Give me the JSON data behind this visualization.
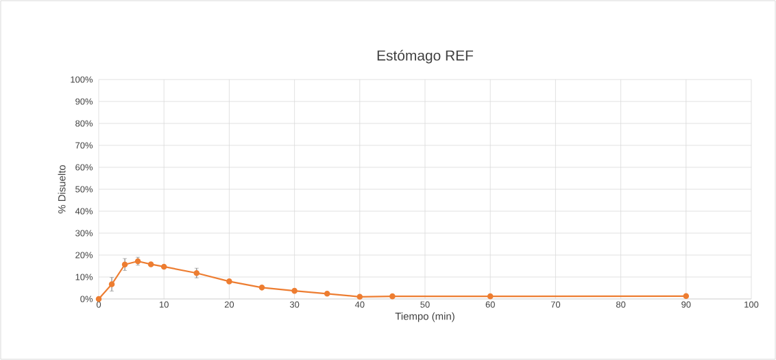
{
  "chart_data": {
    "type": "line",
    "title": "Estómago REF",
    "xlabel": "Tiempo (min)",
    "ylabel": "% Disuelto",
    "x": [
      0,
      2,
      4,
      6,
      8,
      10,
      15,
      20,
      25,
      30,
      35,
      40,
      45,
      60,
      90
    ],
    "series": [
      {
        "color": "#ed7d31",
        "values": [
          0,
          6.7,
          15.7,
          17.2,
          15.8,
          14.7,
          11.8,
          8.0,
          5.2,
          3.7,
          2.4,
          1.0,
          1.2,
          1.2,
          1.3
        ],
        "errors": [
          null,
          3.1,
          2.7,
          1.8,
          null,
          null,
          2.2,
          null,
          null,
          null,
          null,
          null,
          null,
          null,
          null
        ]
      }
    ],
    "xlim": [
      0,
      100
    ],
    "xticks": [
      0,
      10,
      20,
      30,
      40,
      50,
      60,
      70,
      80,
      90,
      100
    ],
    "ylim": [
      0,
      100
    ],
    "yticks": [
      {
        "value": 0,
        "label": "0%"
      },
      {
        "value": 10,
        "label": "10%"
      },
      {
        "value": 20,
        "label": "20%"
      },
      {
        "value": 30,
        "label": "30%"
      },
      {
        "value": 40,
        "label": "40%"
      },
      {
        "value": 50,
        "label": "50%"
      },
      {
        "value": 60,
        "label": "60%"
      },
      {
        "value": 70,
        "label": "70%"
      },
      {
        "value": 80,
        "label": "80%"
      },
      {
        "value": 90,
        "label": "90%"
      },
      {
        "value": 100,
        "label": "100%"
      }
    ],
    "grid": true,
    "marker": "circle",
    "line_style": "solid"
  }
}
